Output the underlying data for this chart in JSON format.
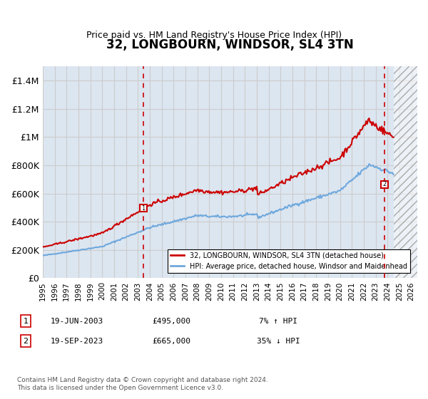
{
  "title": "32, LONGBOURN, WINDSOR, SL4 3TN",
  "subtitle": "Price paid vs. HM Land Registry's House Price Index (HPI)",
  "ylabel": "",
  "xlim": [
    1995,
    2026.5
  ],
  "ylim": [
    0,
    1500000
  ],
  "yticks": [
    0,
    200000,
    400000,
    600000,
    800000,
    1000000,
    1200000,
    1400000
  ],
  "ytick_labels": [
    "£0",
    "£200K",
    "£400K",
    "£600K",
    "£800K",
    "£1M",
    "£1.2M",
    "£1.4M"
  ],
  "xticks": [
    1995,
    1996,
    1997,
    1998,
    1999,
    2000,
    2001,
    2002,
    2003,
    2004,
    2005,
    2006,
    2007,
    2008,
    2009,
    2010,
    2011,
    2012,
    2013,
    2014,
    2015,
    2016,
    2017,
    2018,
    2019,
    2020,
    2021,
    2022,
    2023,
    2024,
    2025,
    2026
  ],
  "sale1_x": 2003.46,
  "sale1_y": 495000,
  "sale2_x": 2023.72,
  "sale2_y": 665000,
  "hpi_color": "#6fa8dc",
  "property_color": "#cc0000",
  "grid_color": "#cccccc",
  "bg_color": "#dce6f1",
  "plot_bg": "#dce6f1",
  "hatch_color": "#b8c9e0",
  "legend_label1": "32, LONGBOURN, WINDSOR, SL4 3TN (detached house)",
  "legend_label2": "HPI: Average price, detached house, Windsor and Maidenhead",
  "note1_num": "1",
  "note1_date": "19-JUN-2003",
  "note1_price": "£495,000",
  "note1_hpi": "7% ↑ HPI",
  "note2_num": "2",
  "note2_date": "19-SEP-2023",
  "note2_price": "£665,000",
  "note2_hpi": "35% ↓ HPI",
  "copyright": "Contains HM Land Registry data © Crown copyright and database right 2024.\nThis data is licensed under the Open Government Licence v3.0."
}
